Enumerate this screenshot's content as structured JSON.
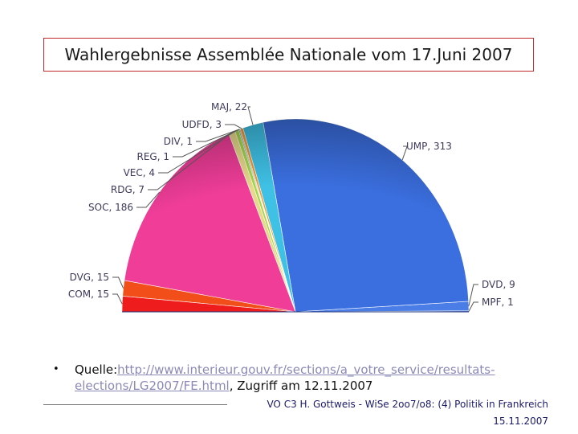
{
  "chart_data": {
    "type": "pie",
    "title": "Wahlergebnisse Assemblée Nationale vom 17.Juni 2007",
    "variant": "semicircle",
    "slices": [
      {
        "label": "UMP",
        "value": 313,
        "color": "#3b6fe0"
      },
      {
        "label": "DVD",
        "value": 9,
        "color": "#4a7de6"
      },
      {
        "label": "MPF",
        "value": 1,
        "color": "#2f55b8"
      },
      {
        "label": "COM",
        "value": 15,
        "color": "#ee1c1c"
      },
      {
        "label": "DVG",
        "value": 15,
        "color": "#f24e1a"
      },
      {
        "label": "SOC",
        "value": 186,
        "color": "#ef3d98"
      },
      {
        "label": "RDG",
        "value": 7,
        "color": "#e7d98a"
      },
      {
        "label": "VEC",
        "value": 4,
        "color": "#a8d64a"
      },
      {
        "label": "REG",
        "value": 1,
        "color": "#2e8b2e"
      },
      {
        "label": "DIV",
        "value": 1,
        "color": "#888888"
      },
      {
        "label": "UDFD",
        "value": 3,
        "color": "#f29a2e"
      },
      {
        "label": "MAJ",
        "value": 22,
        "color": "#3fc1e6"
      }
    ],
    "labels": {
      "UMP": "UMP, 313",
      "DVD": "DVD, 9",
      "MPF": "MPF, 1",
      "COM": "COM, 15",
      "DVG": "DVG, 15",
      "SOC": "SOC, 186",
      "RDG": "RDG, 7",
      "VEC": "VEC, 4",
      "REG": "REG, 1",
      "DIV": "DIV, 1",
      "UDFD": "UDFD, 3",
      "MAJ": "MAJ, 22"
    }
  },
  "source": {
    "bullet": "•",
    "prefix": "Quelle:",
    "url": "http://www.interieur.gouv.fr/sections/a_votre_service/resultats-elections/LG2007/FE.html",
    "suffix": ", Zugriff am 12.11.2007"
  },
  "footer": {
    "course": "VO C3 H. Gottweis - WiSe 2oo7/o8: (4) Politik in Frankreich",
    "date": "15.11.2007"
  }
}
